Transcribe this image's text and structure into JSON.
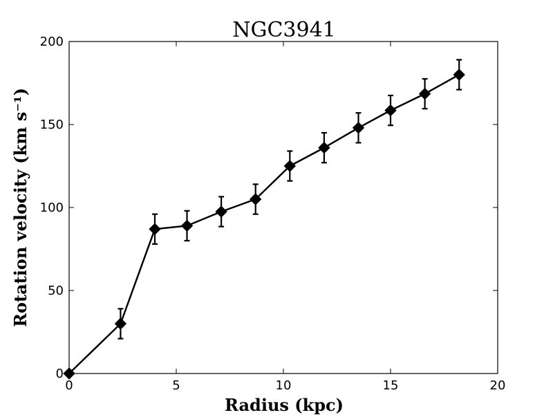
{
  "chart_data": {
    "type": "line",
    "title": "NGC3941",
    "xlabel": "Radius (kpc)",
    "ylabel": "Rotation velocity (km s⁻¹)",
    "xlim": [
      0,
      20
    ],
    "ylim": [
      0,
      200
    ],
    "xticks": [
      0,
      5,
      10,
      15,
      20
    ],
    "yticks": [
      0,
      50,
      100,
      150,
      200
    ],
    "grid": false,
    "marker": "diamond",
    "line_color": "#000000",
    "marker_color": "#000000",
    "series": [
      {
        "x": [
          0.0,
          2.4,
          4.0,
          5.5,
          7.1,
          8.7,
          10.3,
          11.9,
          13.5,
          15.0,
          16.6,
          18.2
        ],
        "y": [
          0,
          30,
          87,
          89,
          97.5,
          105,
          125,
          136,
          148,
          158.5,
          168.5,
          180
        ],
        "yerr": [
          0,
          9,
          9,
          9,
          9,
          9,
          9,
          9,
          9,
          9,
          9,
          9
        ]
      }
    ]
  }
}
